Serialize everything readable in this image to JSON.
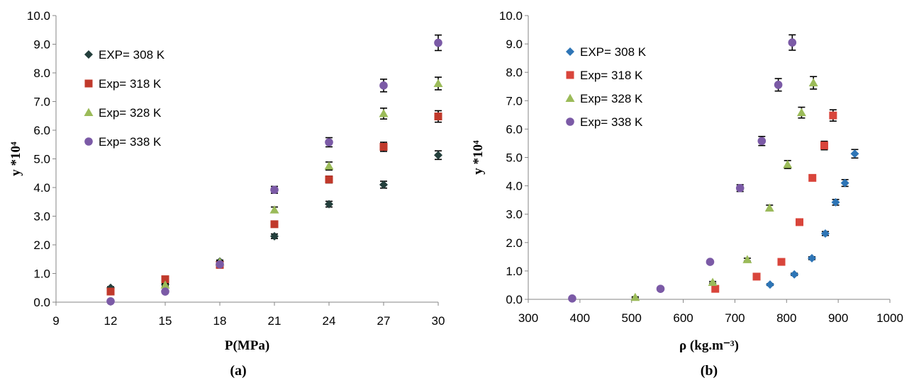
{
  "chart_data": [
    {
      "id": "a",
      "type": "scatter",
      "panel_label": "(a)",
      "xlabel": "P(MPa)",
      "ylabel": "y *10⁴",
      "xlim": [
        9,
        30
      ],
      "ylim": [
        0,
        10
      ],
      "xticks": [
        "9",
        "12",
        "15",
        "18",
        "21",
        "24",
        "27",
        "30"
      ],
      "yticks": [
        "0.0",
        "1.0",
        "2.0",
        "3.0",
        "4.0",
        "5.0",
        "6.0",
        "7.0",
        "8.0",
        "9.0",
        "10.0"
      ],
      "grid": false,
      "legend_position": "top-left",
      "series": [
        {
          "name": "EXP= 308 K",
          "marker": "diamond",
          "color": "#243f3c",
          "x": [
            12,
            15,
            18,
            21,
            24,
            27,
            30
          ],
          "y": [
            0.5,
            0.62,
            1.42,
            2.3,
            3.42,
            4.1,
            5.13
          ],
          "err": [
            0.04,
            0.04,
            0.05,
            0.08,
            0.1,
            0.12,
            0.15
          ]
        },
        {
          "name": "Exp= 318 K",
          "marker": "square",
          "color": "#c0392b",
          "x": [
            12,
            15,
            18,
            21,
            24,
            27,
            30
          ],
          "y": [
            0.37,
            0.8,
            1.3,
            2.72,
            4.28,
            5.42,
            6.48
          ],
          "err": [
            0.03,
            0.04,
            0.04,
            0.08,
            0.12,
            0.16,
            0.2
          ]
        },
        {
          "name": "Exp= 328 K",
          "marker": "triangle",
          "color": "#9bbb59",
          "x": [
            15,
            18,
            21,
            24,
            27,
            30
          ],
          "y": [
            0.6,
            1.4,
            3.22,
            4.75,
            6.58,
            7.63
          ],
          "err": [
            0.04,
            0.05,
            0.1,
            0.14,
            0.19,
            0.22
          ]
        },
        {
          "name": "Exp= 338 K",
          "marker": "circle",
          "color": "#7b5aa6",
          "x": [
            12,
            15,
            18,
            21,
            24,
            27,
            30
          ],
          "y": [
            0.03,
            0.37,
            1.32,
            3.92,
            5.58,
            7.56,
            9.05
          ],
          "err": [
            0.02,
            0.03,
            0.04,
            0.12,
            0.16,
            0.22,
            0.27
          ]
        }
      ]
    },
    {
      "id": "b",
      "type": "scatter",
      "panel_label": "(b)",
      "xlabel": "ρ (kg.m⁻³)",
      "ylabel": "y *10⁴",
      "xlim": [
        300,
        1000
      ],
      "ylim": [
        0,
        10
      ],
      "xticks": [
        "300",
        "400",
        "500",
        "600",
        "700",
        "800",
        "900",
        "1000"
      ],
      "yticks": [
        "0.0",
        "1.0",
        "2.0",
        "3.0",
        "4.0",
        "5.0",
        "6.0",
        "7.0",
        "8.0",
        "9.0",
        "10.0"
      ],
      "grid": false,
      "legend_position": "top-left",
      "series": [
        {
          "name": "EXP= 308 K",
          "marker": "diamond",
          "color": "#2e75b6",
          "x": [
            768,
            815,
            849,
            875,
            895,
            913,
            932
          ],
          "y": [
            0.52,
            0.88,
            1.45,
            2.32,
            3.42,
            4.1,
            5.13
          ],
          "err": [
            0.03,
            0.04,
            0.05,
            0.07,
            0.1,
            0.12,
            0.15
          ]
        },
        {
          "name": "Exp= 318 K",
          "marker": "square",
          "color": "#d9453b",
          "x": [
            662,
            742,
            790,
            825,
            850,
            873,
            890
          ],
          "y": [
            0.37,
            0.8,
            1.32,
            2.72,
            4.28,
            5.42,
            6.48
          ],
          "err": [
            0.03,
            0.03,
            0.04,
            0.07,
            0.1,
            0.15,
            0.2
          ]
        },
        {
          "name": "Exp= 328 K",
          "marker": "triangle",
          "color": "#9bbb59",
          "x": [
            507,
            657,
            724,
            767,
            802,
            829,
            852
          ],
          "y": [
            0.07,
            0.6,
            1.4,
            3.22,
            4.75,
            6.58,
            7.63
          ],
          "err": [
            0.02,
            0.03,
            0.05,
            0.1,
            0.14,
            0.19,
            0.22
          ]
        },
        {
          "name": "Exp= 338 K",
          "marker": "circle",
          "color": "#7b5aa6",
          "x": [
            385,
            556,
            652,
            710,
            752,
            784,
            811
          ],
          "y": [
            0.03,
            0.37,
            1.32,
            3.92,
            5.58,
            7.56,
            9.05
          ],
          "err": [
            0.02,
            0.03,
            0.04,
            0.12,
            0.16,
            0.22,
            0.27
          ]
        }
      ]
    }
  ]
}
